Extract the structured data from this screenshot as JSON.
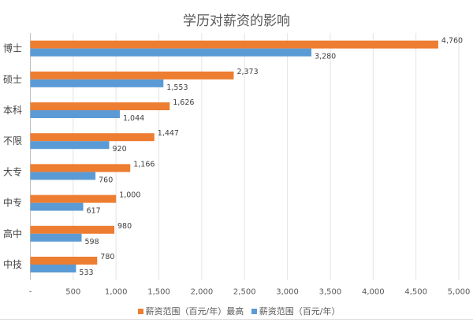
{
  "chart_data": {
    "type": "bar",
    "orientation": "horizontal",
    "title": "学历对薪资的影响",
    "categories": [
      "博士",
      "硕士",
      "本科",
      "不限",
      "大专",
      "中专",
      "高中",
      "中技"
    ],
    "series": [
      {
        "name": "薪资范围（百元/年）最高",
        "color": "#ED7D31",
        "values": [
          4760,
          2373,
          1626,
          1447,
          1166,
          1000,
          980,
          780
        ],
        "labels": [
          "4,760",
          "2,373",
          "1,626",
          "1,447",
          "1,166",
          "1,000",
          "980",
          "780"
        ]
      },
      {
        "name": "薪资范围（百元/年）",
        "color": "#5B9BD5",
        "values": [
          3280,
          1553,
          1044,
          920,
          760,
          617,
          598,
          533
        ],
        "labels": [
          "3,280",
          "1,553",
          "1,044",
          "920",
          "760",
          "617",
          "598",
          "533"
        ]
      }
    ],
    "xlim": [
      0,
      5000
    ],
    "xticks": [
      0,
      500,
      1000,
      1500,
      2000,
      2500,
      3000,
      3500,
      4000,
      4500,
      5000
    ],
    "xtick_labels": [
      "-",
      "500",
      "1,000",
      "1,500",
      "2,000",
      "2,500",
      "3,000",
      "3,500",
      "4,000",
      "4,500",
      "5,000"
    ],
    "grid": true,
    "legend_position": "bottom"
  }
}
